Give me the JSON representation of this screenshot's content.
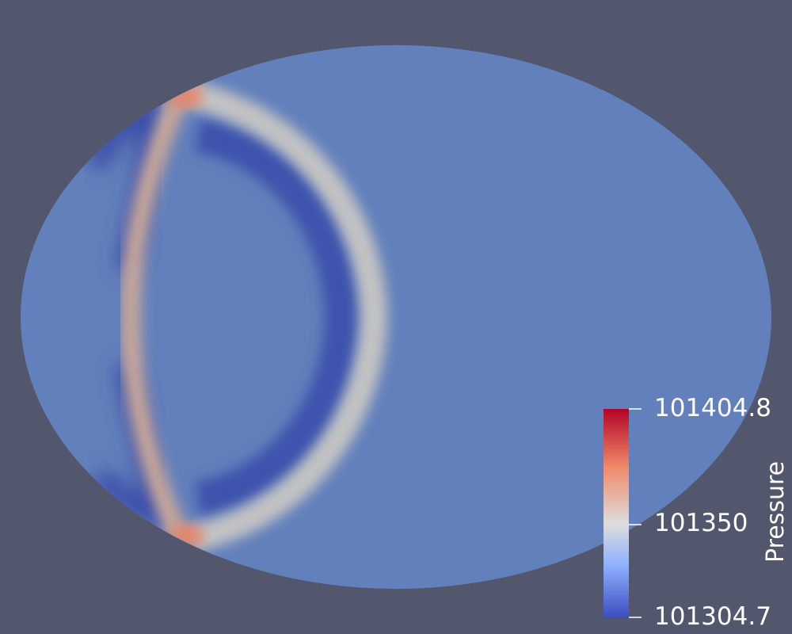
{
  "viewport": {
    "background": "#52576e"
  },
  "field": {
    "base_color": "#6280bb",
    "low_color": "#3b4ca8",
    "mid_color": "#c8c8c8",
    "high_color": "#e7876a"
  },
  "colorbar": {
    "title": "Pressure",
    "max_label": "101404.8",
    "mid_label": "101350",
    "min_label": "101304.7",
    "colors": {
      "top": "#b40426",
      "upper": "#f08a6a",
      "middle": "#dddddd",
      "lower": "#8db0fe",
      "bottom": "#3b4cc0"
    }
  }
}
